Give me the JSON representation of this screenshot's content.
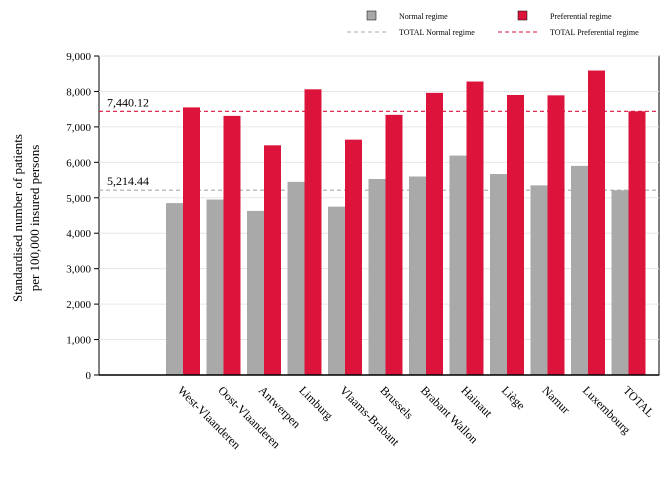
{
  "chart_data": {
    "type": "bar",
    "title": "",
    "xlabel": "",
    "ylabel_lines": [
      "Standardised number of patients",
      "per 100,000 insured persons"
    ],
    "ylim": [
      0,
      9000
    ],
    "yticks": [
      0,
      1000,
      2000,
      3000,
      4000,
      5000,
      6000,
      7000,
      8000,
      9000
    ],
    "ytick_labels": [
      "0",
      "1,000",
      "2,000",
      "3,000",
      "4,000",
      "5,000",
      "6,000",
      "7,000",
      "8,000",
      "9,000"
    ],
    "grid": true,
    "legend_position": "top",
    "categories": [
      "West-Vlaanderen",
      "Oost-Vlaanderen",
      "Antwerpen",
      "Limburg",
      "Vlaams-Brabant",
      "Brussels",
      "Brabant Wallon",
      "Hainaut",
      "Liège",
      "Namur",
      "Luxembourg",
      "TOTAL"
    ],
    "series": [
      {
        "name": "Normal regime",
        "color": "#a9a9a9",
        "values": [
          4850,
          4950,
          4630,
          5450,
          4750,
          5530,
          5600,
          6190,
          5670,
          5350,
          5900,
          5214.44
        ]
      },
      {
        "name": "Preferential regime",
        "color": "#dc143c",
        "values": [
          7550,
          7310,
          6480,
          8060,
          6640,
          7340,
          7960,
          8280,
          7900,
          7890,
          8590,
          7440.12
        ]
      }
    ],
    "reference_lines": [
      {
        "name": "TOTAL Normal regime",
        "value": 5214.44,
        "label": "5,214.44",
        "color": "#a9a9a9"
      },
      {
        "name": "TOTAL Preferential regime",
        "value": 7440.12,
        "label": "7,440.12",
        "color": "#dc143c"
      }
    ]
  }
}
